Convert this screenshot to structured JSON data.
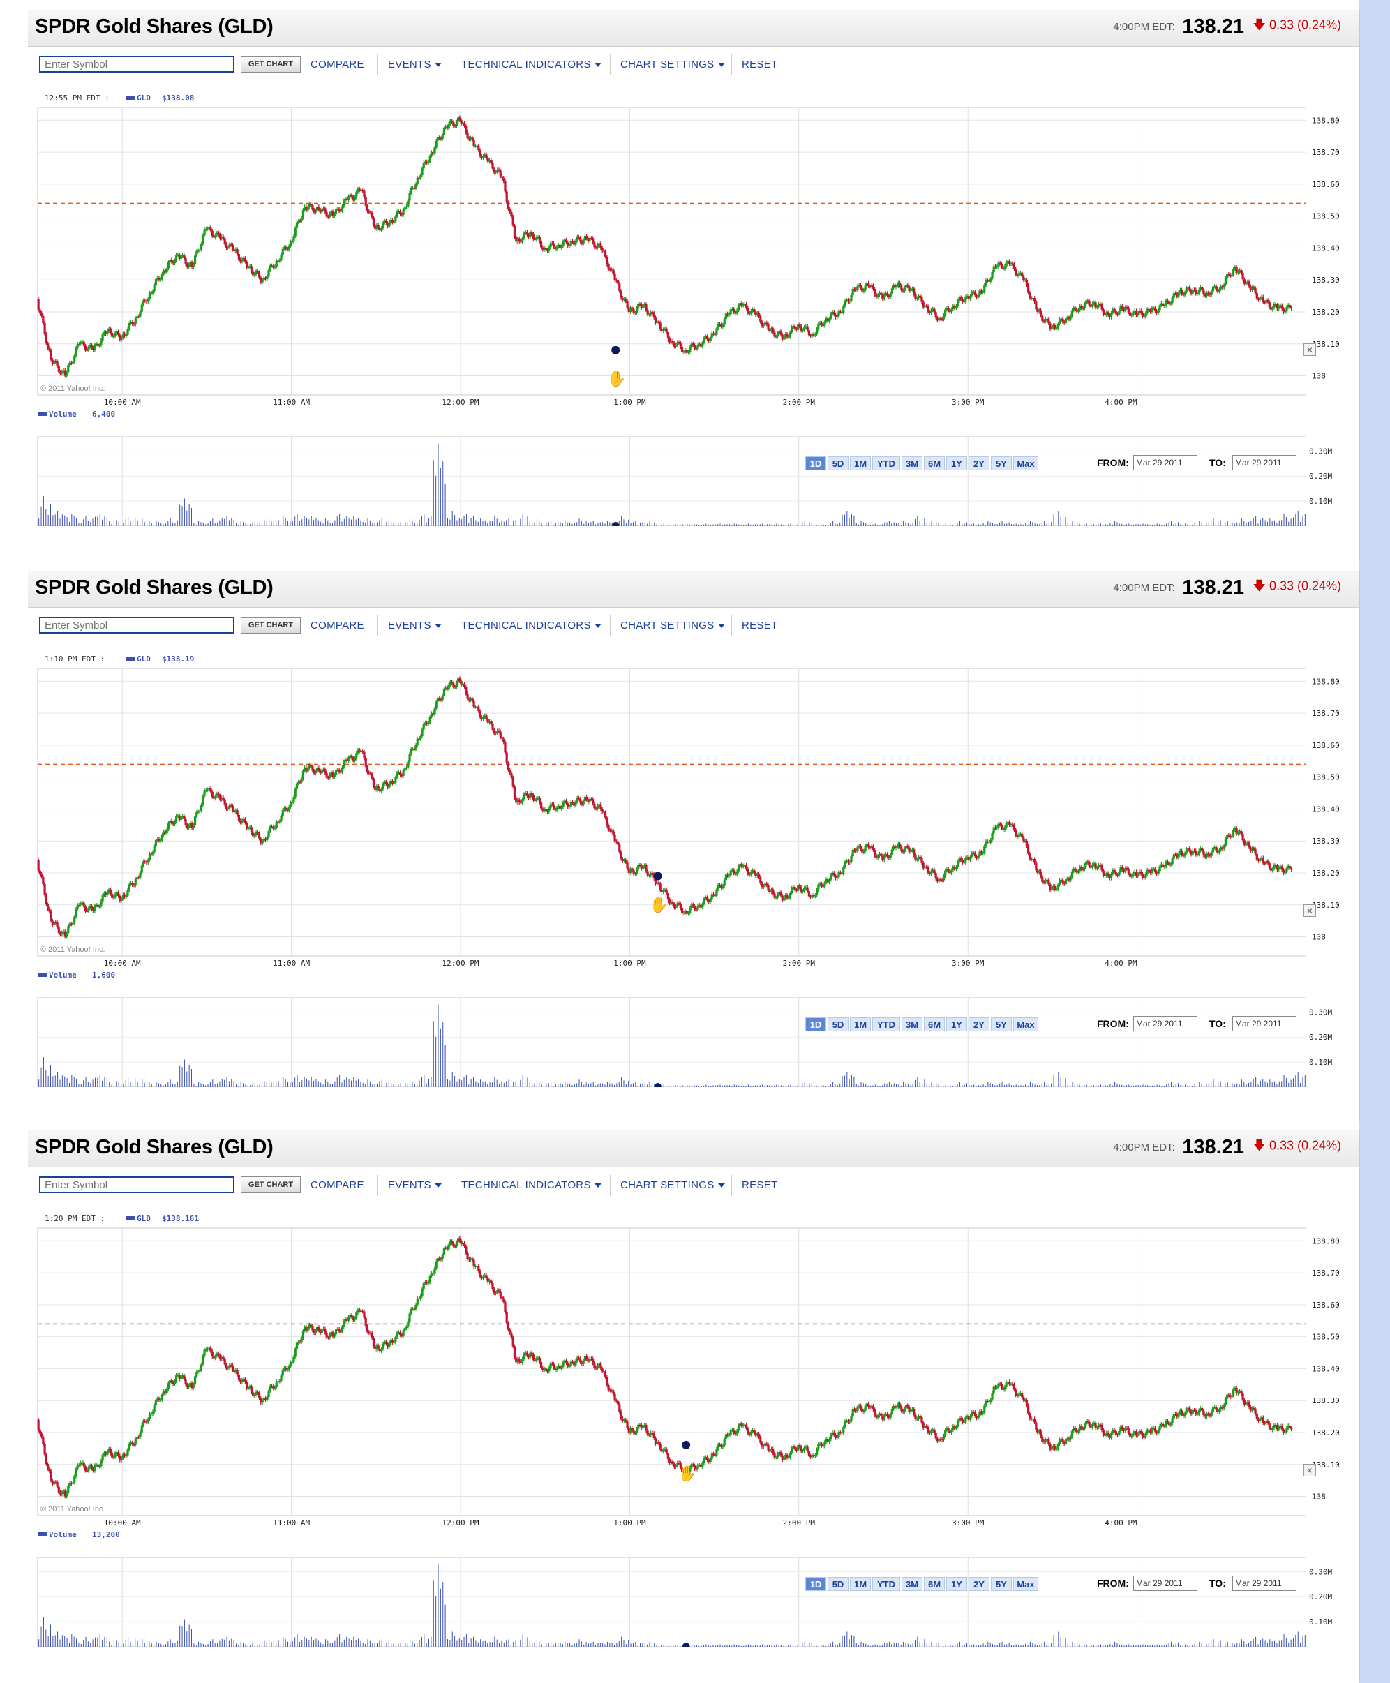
{
  "page": {
    "title": "SPDR Gold Shares (GLD)",
    "quote_time": "4:00PM EDT:",
    "quote_price": "138.21",
    "quote_change": "0.33 (0.24%)",
    "quote_change_direction": "down",
    "symbol_placeholder": "Enter Symbol",
    "get_chart": "GET CHART",
    "compare": "COMPARE",
    "events": "EVENTS",
    "technical_indicators": "TECHNICAL INDICATORS",
    "chart_settings": "CHART SETTINGS",
    "reset": "RESET",
    "copyright": "© 2011 Yahoo! Inc.",
    "from_label": "FROM:",
    "to_label": "TO:",
    "from_date": "Mar 29 2011",
    "to_date": "Mar 29 2011",
    "range_buttons": [
      "1D",
      "5D",
      "1M",
      "YTD",
      "3M",
      "6M",
      "1Y",
      "2Y",
      "5Y",
      "Max"
    ],
    "active_range": "1D",
    "close_glyph": "×",
    "hand_icon": "hand-cursor-icon",
    "colors": {
      "up": "#1a9d1a",
      "down": "#c4122f",
      "link": "#1b3f9a",
      "reference": "#e05a1e",
      "volume": "#3a4fb0"
    }
  },
  "panels": [
    {
      "hover_time": "12:55 PM EDT :",
      "symbol": "GLD",
      "hover_price": "$138.08",
      "volume_label": "Volume",
      "volume_value": "6,400"
    },
    {
      "hover_time": "1:10 PM EDT :",
      "symbol": "GLD",
      "hover_price": "$138.19",
      "volume_label": "Volume",
      "volume_value": "1,600"
    },
    {
      "hover_time": "1:20 PM EDT :",
      "symbol": "GLD",
      "hover_price": "$138.161",
      "volume_label": "Volume",
      "volume_value": "13,200"
    }
  ],
  "chart_data": {
    "type": "line",
    "style": "candlestick",
    "x_ticks": [
      "10:00 AM",
      "11:00 AM",
      "12:00 PM",
      "1:00 PM",
      "2:00 PM",
      "3:00 PM",
      "4:00 PM"
    ],
    "y_ticks": [
      "138",
      "138.10",
      "138.20",
      "138.30",
      "138.40",
      "138.50",
      "138.60",
      "138.70",
      "138.80"
    ],
    "ylim": [
      137.94,
      138.84
    ],
    "previous_close": 138.54,
    "hover_points": [
      {
        "time": "12:55",
        "price": 138.08
      },
      {
        "time": "1:10",
        "price": 138.19
      },
      {
        "time": "1:20",
        "price": 138.161
      }
    ],
    "price_series": [
      [
        "9:30",
        138.24
      ],
      [
        "9:35",
        138.05
      ],
      [
        "9:40",
        138.0
      ],
      [
        "9:45",
        138.1
      ],
      [
        "9:50",
        138.08
      ],
      [
        "9:55",
        138.14
      ],
      [
        "10:00",
        138.12
      ],
      [
        "10:05",
        138.18
      ],
      [
        "10:10",
        138.26
      ],
      [
        "10:15",
        138.33
      ],
      [
        "10:20",
        138.38
      ],
      [
        "10:25",
        138.34
      ],
      [
        "10:30",
        138.46
      ],
      [
        "10:35",
        138.43
      ],
      [
        "10:40",
        138.39
      ],
      [
        "10:45",
        138.34
      ],
      [
        "10:50",
        138.3
      ],
      [
        "10:55",
        138.36
      ],
      [
        "11:00",
        138.42
      ],
      [
        "11:05",
        138.53
      ],
      [
        "11:10",
        138.52
      ],
      [
        "11:15",
        138.5
      ],
      [
        "11:20",
        138.55
      ],
      [
        "11:25",
        138.58
      ],
      [
        "11:30",
        138.46
      ],
      [
        "11:35",
        138.48
      ],
      [
        "11:40",
        138.52
      ],
      [
        "11:45",
        138.62
      ],
      [
        "11:50",
        138.7
      ],
      [
        "11:55",
        138.78
      ],
      [
        "12:00",
        138.8
      ],
      [
        "12:05",
        138.72
      ],
      [
        "12:10",
        138.67
      ],
      [
        "12:15",
        138.62
      ],
      [
        "12:20",
        138.42
      ],
      [
        "12:25",
        138.45
      ],
      [
        "12:30",
        138.4
      ],
      [
        "12:35",
        138.41
      ],
      [
        "12:40",
        138.42
      ],
      [
        "12:45",
        138.43
      ],
      [
        "12:50",
        138.4
      ],
      [
        "12:55",
        138.3
      ],
      [
        "13:00",
        138.2
      ],
      [
        "13:05",
        138.22
      ],
      [
        "13:10",
        138.17
      ],
      [
        "13:15",
        138.11
      ],
      [
        "13:20",
        138.08
      ],
      [
        "13:25",
        138.1
      ],
      [
        "13:30",
        138.13
      ],
      [
        "13:35",
        138.19
      ],
      [
        "13:40",
        138.22
      ],
      [
        "13:45",
        138.19
      ],
      [
        "13:50",
        138.14
      ],
      [
        "13:55",
        138.12
      ],
      [
        "14:00",
        138.16
      ],
      [
        "14:05",
        138.13
      ],
      [
        "14:10",
        138.18
      ],
      [
        "14:15",
        138.2
      ],
      [
        "14:20",
        138.27
      ],
      [
        "14:25",
        138.28
      ],
      [
        "14:30",
        138.24
      ],
      [
        "14:35",
        138.28
      ],
      [
        "14:40",
        138.27
      ],
      [
        "14:45",
        138.22
      ],
      [
        "14:50",
        138.18
      ],
      [
        "14:55",
        138.22
      ],
      [
        "15:00",
        138.25
      ],
      [
        "15:05",
        138.26
      ],
      [
        "15:10",
        138.34
      ],
      [
        "15:15",
        138.35
      ],
      [
        "15:20",
        138.3
      ],
      [
        "15:25",
        138.2
      ],
      [
        "15:30",
        138.15
      ],
      [
        "15:35",
        138.18
      ],
      [
        "15:40",
        138.22
      ],
      [
        "15:45",
        138.23
      ],
      [
        "15:50",
        138.19
      ],
      [
        "15:55",
        138.21
      ],
      [
        "16:00",
        138.19
      ],
      [
        "16:05",
        138.2
      ],
      [
        "16:10",
        138.22
      ],
      [
        "16:15",
        138.26
      ],
      [
        "16:20",
        138.27
      ],
      [
        "16:25",
        138.26
      ],
      [
        "16:30",
        138.28
      ],
      [
        "16:35",
        138.34
      ],
      [
        "16:40",
        138.28
      ],
      [
        "16:45",
        138.23
      ],
      [
        "16:50",
        138.21
      ],
      [
        "16:55",
        138.21
      ]
    ],
    "volume": {
      "y_ticks": [
        "0.10M",
        "0.20M",
        "0.30M"
      ],
      "ylim": [
        0,
        0.34
      ],
      "series": [
        [
          "9:30",
          0.12
        ],
        [
          "9:35",
          0.06
        ],
        [
          "9:40",
          0.05
        ],
        [
          "9:45",
          0.04
        ],
        [
          "9:50",
          0.05
        ],
        [
          "9:55",
          0.03
        ],
        [
          "10:00",
          0.04
        ],
        [
          "10:05",
          0.03
        ],
        [
          "10:10",
          0.02
        ],
        [
          "10:15",
          0.03
        ],
        [
          "10:20",
          0.11
        ],
        [
          "10:25",
          0.02
        ],
        [
          "10:30",
          0.03
        ],
        [
          "10:35",
          0.04
        ],
        [
          "10:40",
          0.02
        ],
        [
          "10:45",
          0.02
        ],
        [
          "10:50",
          0.03
        ],
        [
          "10:55",
          0.04
        ],
        [
          "11:00",
          0.05
        ],
        [
          "11:05",
          0.04
        ],
        [
          "11:10",
          0.03
        ],
        [
          "11:15",
          0.05
        ],
        [
          "11:20",
          0.04
        ],
        [
          "11:25",
          0.03
        ],
        [
          "11:30",
          0.03
        ],
        [
          "11:35",
          0.02
        ],
        [
          "11:40",
          0.03
        ],
        [
          "11:45",
          0.05
        ],
        [
          "11:50",
          0.33
        ],
        [
          "11:55",
          0.06
        ],
        [
          "12:00",
          0.05
        ],
        [
          "12:05",
          0.03
        ],
        [
          "12:10",
          0.04
        ],
        [
          "12:15",
          0.03
        ],
        [
          "12:20",
          0.05
        ],
        [
          "12:25",
          0.03
        ],
        [
          "12:30",
          0.02
        ],
        [
          "12:35",
          0.02
        ],
        [
          "12:40",
          0.03
        ],
        [
          "12:45",
          0.02
        ],
        [
          "12:50",
          0.02
        ],
        [
          "12:55",
          0.04
        ],
        [
          "13:00",
          0.02
        ],
        [
          "13:05",
          0.02
        ],
        [
          "13:10",
          0.01
        ],
        [
          "13:15",
          0.01
        ],
        [
          "13:20",
          0.01
        ],
        [
          "13:25",
          0.01
        ],
        [
          "13:30",
          0.01
        ],
        [
          "13:35",
          0.01
        ],
        [
          "13:40",
          0.01
        ],
        [
          "13:45",
          0.01
        ],
        [
          "13:50",
          0.01
        ],
        [
          "13:55",
          0.01
        ],
        [
          "14:00",
          0.02
        ],
        [
          "14:05",
          0.01
        ],
        [
          "14:10",
          0.02
        ],
        [
          "14:15",
          0.06
        ],
        [
          "14:20",
          0.02
        ],
        [
          "14:25",
          0.01
        ],
        [
          "14:30",
          0.02
        ],
        [
          "14:35",
          0.02
        ],
        [
          "14:40",
          0.04
        ],
        [
          "14:45",
          0.02
        ],
        [
          "14:50",
          0.01
        ],
        [
          "14:55",
          0.02
        ],
        [
          "15:00",
          0.01
        ],
        [
          "15:05",
          0.02
        ],
        [
          "15:10",
          0.02
        ],
        [
          "15:15",
          0.01
        ],
        [
          "15:20",
          0.02
        ],
        [
          "15:25",
          0.02
        ],
        [
          "15:30",
          0.06
        ],
        [
          "15:35",
          0.02
        ],
        [
          "15:40",
          0.01
        ],
        [
          "15:45",
          0.01
        ],
        [
          "15:50",
          0.02
        ],
        [
          "15:55",
          0.01
        ],
        [
          "16:00",
          0.01
        ],
        [
          "16:05",
          0.01
        ],
        [
          "16:10",
          0.02
        ],
        [
          "16:15",
          0.01
        ],
        [
          "16:20",
          0.02
        ],
        [
          "16:25",
          0.03
        ],
        [
          "16:30",
          0.02
        ],
        [
          "16:35",
          0.03
        ],
        [
          "16:40",
          0.04
        ],
        [
          "16:45",
          0.03
        ],
        [
          "16:50",
          0.05
        ],
        [
          "16:55",
          0.06
        ]
      ]
    }
  }
}
